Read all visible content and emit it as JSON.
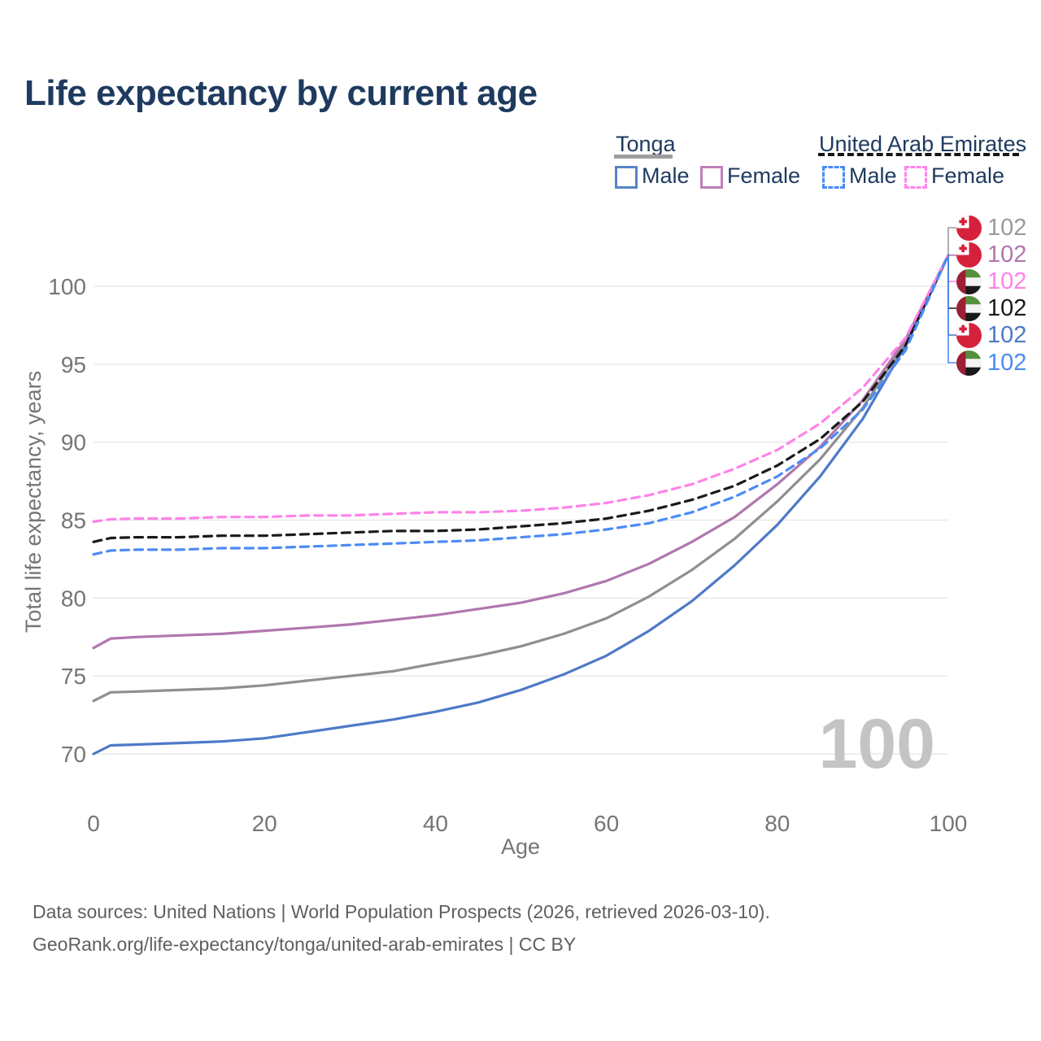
{
  "title": "Life expectancy by current age",
  "legend": {
    "groups": [
      {
        "label": "Tonga",
        "line_style": "solid",
        "underline_color": "#9e9e9e",
        "items": [
          {
            "label": "Male",
            "color": "#4e79c7"
          },
          {
            "label": "Female",
            "color": "#b076ae"
          }
        ]
      },
      {
        "label": "United Arab Emirates",
        "line_style": "dashed",
        "underline_color": "#161616",
        "items": [
          {
            "label": "Male",
            "color": "#4b8bf5"
          },
          {
            "label": "Female",
            "color": "#ff82e9"
          }
        ]
      }
    ]
  },
  "watermark": "100",
  "endpoint_labels": [
    {
      "flag": "tonga",
      "value": "102",
      "color": "#9a9a9a",
      "series": "Tonga Total"
    },
    {
      "flag": "tonga",
      "value": "102",
      "color": "#b076ae",
      "series": "Tonga Female"
    },
    {
      "flag": "uae",
      "value": "102",
      "color": "#ff82e9",
      "series": "United Arab Emirates Female"
    },
    {
      "flag": "uae",
      "value": "102",
      "color": "#1a1a1a",
      "series": "United Arab Emirates Total"
    },
    {
      "flag": "tonga",
      "value": "102",
      "color": "#4e79c7",
      "series": "Tonga Male"
    },
    {
      "flag": "uae",
      "value": "102",
      "color": "#4b8bf5",
      "series": "United Arab Emirates Male"
    }
  ],
  "footer": {
    "line1": "Data sources: United Nations | World Population Prospects (2026, retrieved 2026-03-10).",
    "line2": "GeoRank.org/life-expectancy/tonga/united-arab-emirates | CC BY"
  },
  "chart_data": {
    "type": "line",
    "title": "Life expectancy by current age",
    "xlabel": "Age",
    "ylabel": "Total life expectancy, years",
    "xlim": [
      0,
      100
    ],
    "ylim": [
      70,
      100
    ],
    "x_ticks": [
      0,
      20,
      40,
      60,
      80,
      100
    ],
    "y_ticks": [
      70,
      75,
      80,
      85,
      90,
      95,
      100
    ],
    "grid": true,
    "legend_position": "top-right",
    "end_age": 100,
    "end_value": 102,
    "ages": [
      0,
      2,
      5,
      10,
      15,
      20,
      25,
      30,
      35,
      40,
      45,
      50,
      55,
      60,
      65,
      70,
      75,
      80,
      85,
      90,
      95,
      100
    ],
    "series": [
      {
        "name": "Tonga Total",
        "country": "Tonga",
        "sex": "Both",
        "color": "#8f8f8f",
        "dash": "solid",
        "values": [
          73.4,
          73.95,
          74.0,
          74.1,
          74.2,
          74.4,
          74.7,
          75.0,
          75.3,
          75.8,
          76.3,
          76.9,
          77.7,
          78.7,
          80.1,
          81.8,
          83.8,
          86.2,
          88.9,
          92.2,
          96.4,
          102
        ]
      },
      {
        "name": "Tonga Female",
        "country": "Tonga",
        "sex": "Female",
        "color": "#b076ae",
        "dash": "solid",
        "values": [
          76.8,
          77.4,
          77.5,
          77.6,
          77.7,
          77.9,
          78.1,
          78.3,
          78.6,
          78.9,
          79.3,
          79.7,
          80.3,
          81.1,
          82.2,
          83.6,
          85.2,
          87.3,
          89.7,
          92.7,
          96.6,
          102
        ]
      },
      {
        "name": "Tonga Male",
        "country": "Tonga",
        "sex": "Male",
        "color": "#4e79c7",
        "dash": "solid",
        "values": [
          70.0,
          70.55,
          70.6,
          70.7,
          70.8,
          71.0,
          71.4,
          71.8,
          72.2,
          72.7,
          73.3,
          74.1,
          75.1,
          76.3,
          77.9,
          79.8,
          82.1,
          84.7,
          87.8,
          91.5,
          96.2,
          102
        ]
      },
      {
        "name": "United Arab Emirates Total",
        "country": "United Arab Emirates",
        "sex": "Both",
        "color": "#1a1a1a",
        "dash": "dashed",
        "values": [
          83.6,
          83.85,
          83.9,
          83.9,
          84.0,
          84.0,
          84.1,
          84.2,
          84.3,
          84.3,
          84.4,
          84.6,
          84.8,
          85.1,
          85.6,
          86.3,
          87.2,
          88.5,
          90.2,
          92.6,
          96.2,
          102
        ]
      },
      {
        "name": "United Arab Emirates Female",
        "country": "United Arab Emirates",
        "sex": "Female",
        "color": "#ff82e9",
        "dash": "dashed",
        "values": [
          84.9,
          85.05,
          85.1,
          85.1,
          85.2,
          85.2,
          85.3,
          85.3,
          85.4,
          85.5,
          85.5,
          85.6,
          85.8,
          86.1,
          86.6,
          87.3,
          88.3,
          89.5,
          91.2,
          93.5,
          96.7,
          102
        ]
      },
      {
        "name": "United Arab Emirates Male",
        "country": "United Arab Emirates",
        "sex": "Male",
        "color": "#4b8bf5",
        "dash": "dashed",
        "values": [
          82.8,
          83.05,
          83.1,
          83.1,
          83.2,
          83.2,
          83.3,
          83.4,
          83.5,
          83.6,
          83.7,
          83.9,
          84.1,
          84.4,
          84.8,
          85.5,
          86.5,
          87.8,
          89.6,
          92.1,
          95.9,
          102
        ]
      }
    ]
  }
}
